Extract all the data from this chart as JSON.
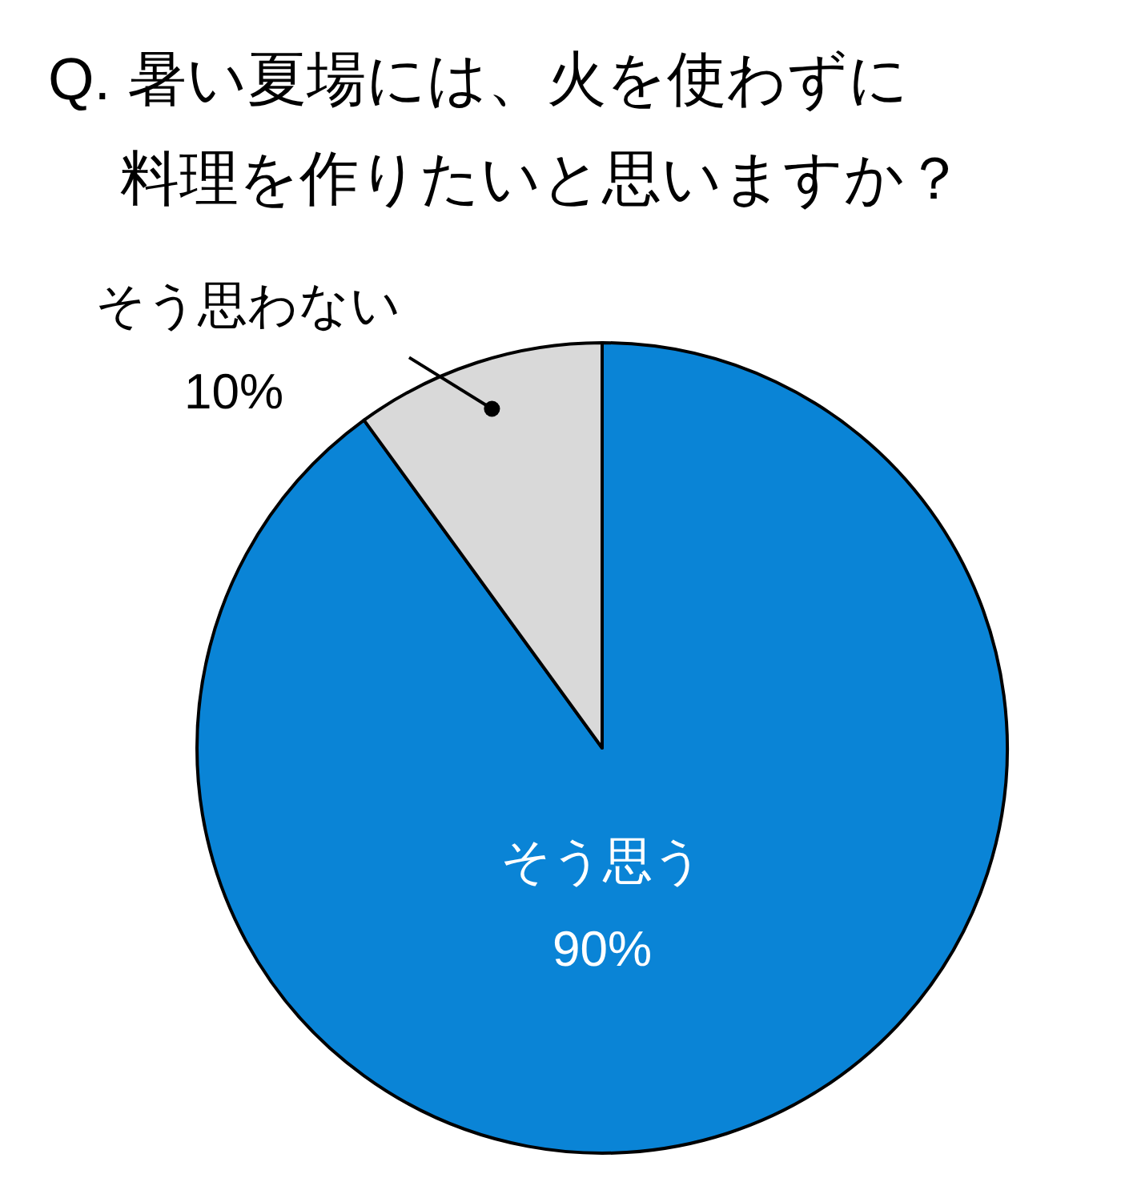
{
  "chart_data": {
    "type": "pie",
    "title": "Q. 暑い夏場には、火を使わずに料理を作りたいと思いますか？",
    "categories": [
      "そう思う",
      "そう思わない"
    ],
    "values": [
      90,
      10
    ],
    "colors": [
      "#0a84d6",
      "#d9d9d9"
    ],
    "value_labels": [
      "90%",
      "10%"
    ]
  }
}
